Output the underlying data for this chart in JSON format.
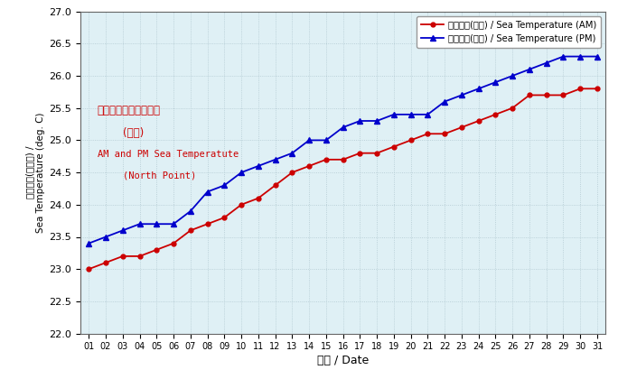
{
  "days": [
    1,
    2,
    3,
    4,
    5,
    6,
    7,
    8,
    9,
    10,
    11,
    12,
    13,
    14,
    15,
    16,
    17,
    18,
    19,
    20,
    21,
    22,
    23,
    24,
    25,
    26,
    27,
    28,
    29,
    30,
    31
  ],
  "am_temps": [
    23.0,
    23.1,
    23.2,
    23.2,
    23.3,
    23.4,
    23.6,
    23.7,
    23.8,
    24.0,
    24.1,
    24.3,
    24.5,
    24.6,
    24.7,
    24.7,
    24.8,
    24.8,
    24.9,
    25.0,
    25.1,
    25.1,
    25.2,
    25.3,
    25.4,
    25.5,
    25.7,
    25.7,
    25.7,
    25.8,
    25.8
  ],
  "pm_temps": [
    23.4,
    23.5,
    23.6,
    23.7,
    23.7,
    23.7,
    23.9,
    24.2,
    24.3,
    24.5,
    24.6,
    24.7,
    24.8,
    25.0,
    25.0,
    25.2,
    25.3,
    25.3,
    25.4,
    25.4,
    25.4,
    25.6,
    25.7,
    25.8,
    25.9,
    26.0,
    26.1,
    26.2,
    26.3,
    26.3,
    26.3
  ],
  "ylim": [
    22.0,
    27.0
  ],
  "yticks": [
    22.0,
    22.5,
    23.0,
    23.5,
    24.0,
    24.5,
    25.0,
    25.5,
    26.0,
    26.5,
    27.0
  ],
  "xlabel": "日期 / Date",
  "ylabel_zh": "海水溫度(攝氏度) /",
  "ylabel_en": "Sea Temperature (deg. C)",
  "am_label": "海水溫度(上午) / Sea Temperature (AM)",
  "pm_label": "海水溫度(下午) / Sea Temperature (PM)",
  "ann_zh1": "上午及下午的海水溫度",
  "ann_zh2": "(北角)",
  "ann_en1": "AM and PM Sea Temperatute",
  "ann_en2": "(North Point)",
  "am_color": "#cc0000",
  "pm_color": "#0000cc",
  "bg_color": "#dff0f5",
  "grid_color": "#b0c8d0",
  "fig_bg": "#ffffff"
}
